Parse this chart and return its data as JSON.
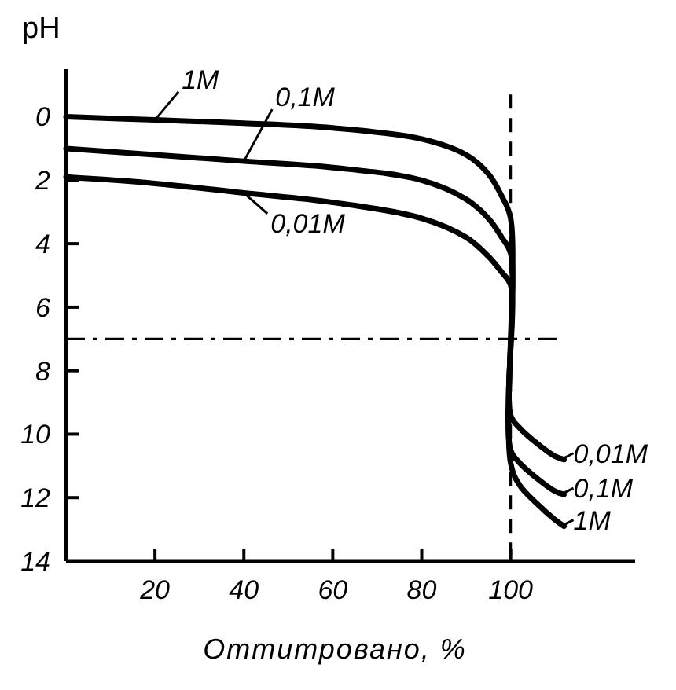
{
  "chart_data": {
    "type": "line",
    "ylabel": "pH",
    "xlabel": "Оттитровано, %",
    "xlim": [
      0,
      128
    ],
    "xticks": [
      20,
      40,
      60,
      80,
      100
    ],
    "ylim": [
      14,
      -1.5
    ],
    "yticks": [
      0,
      2,
      4,
      6,
      8,
      10,
      12,
      14
    ],
    "grid": false,
    "legend": "right",
    "marker": "none",
    "line_style": "solid",
    "series": [
      {
        "name": "1M",
        "color": "#000000",
        "x": [
          0,
          20,
          40,
          60,
          80,
          90,
          95,
          98,
          100,
          100,
          102,
          106,
          110,
          112
        ],
        "values": [
          0,
          0.1,
          0.2,
          0.35,
          0.7,
          1.2,
          1.8,
          2.5,
          3.2,
          10.9,
          11.6,
          12.2,
          12.7,
          12.9
        ]
      },
      {
        "name": "0,1M",
        "color": "#000000",
        "x": [
          0,
          20,
          40,
          60,
          80,
          90,
          95,
          98,
          100,
          100,
          102,
          106,
          110,
          112
        ],
        "values": [
          1,
          1.2,
          1.4,
          1.6,
          2.0,
          2.6,
          3.2,
          3.8,
          4.3,
          10.5,
          10.9,
          11.4,
          11.8,
          11.9
        ]
      },
      {
        "name": "0,01M",
        "color": "#000000",
        "x": [
          0,
          20,
          40,
          60,
          80,
          90,
          95,
          98,
          100,
          100,
          102,
          106,
          110,
          112
        ],
        "values": [
          1.9,
          2.1,
          2.4,
          2.7,
          3.2,
          3.8,
          4.4,
          4.9,
          5.3,
          9.4,
          9.8,
          10.3,
          10.7,
          10.8
        ]
      }
    ],
    "ref_lines": [
      {
        "axis": "y",
        "value": 7,
        "line_style": "dashed"
      },
      {
        "axis": "x",
        "value": 100,
        "line_style": "dashed"
      }
    ]
  }
}
